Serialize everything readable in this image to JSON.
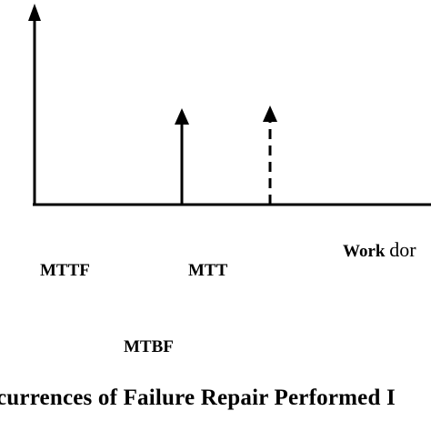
{
  "labels": {
    "mttf": "MTTF",
    "mtt": "MTT",
    "mtbf": "MTBF",
    "work_bold": "Work",
    "work_rest": "dor",
    "bottom": "currences of Failure Repair Performed I"
  },
  "colors": {
    "ink": "#000000",
    "background": "#ffffff"
  }
}
